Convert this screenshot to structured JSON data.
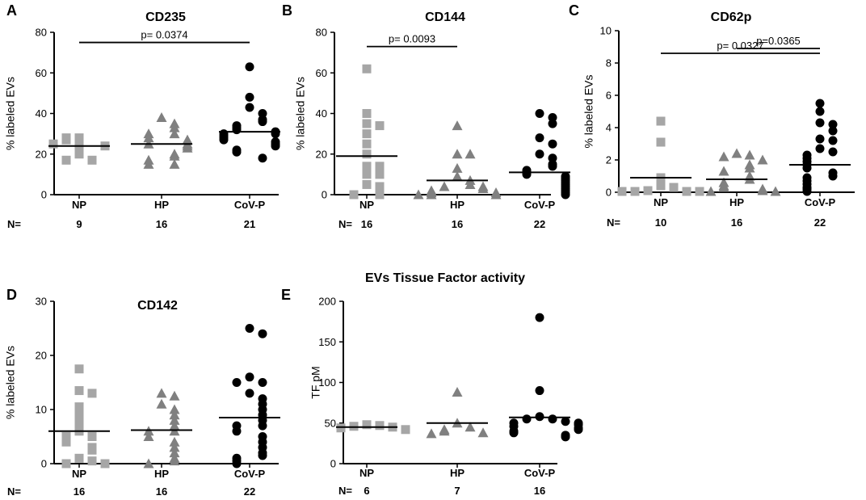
{
  "figure": {
    "colors": {
      "NP": "#a6a6a6",
      "HP": "#808080",
      "CoV-P": "#000000",
      "axis": "#000000"
    },
    "marker_by_group": {
      "NP": "square",
      "HP": "triangle",
      "CoV-P": "circle"
    },
    "n_prefix": "N="
  },
  "chart_data": [
    {
      "panel": "A",
      "type": "scatter",
      "title": "CD235",
      "ylabel": "% labeled EVs",
      "ylim": [
        0,
        80
      ],
      "yticks": [
        0,
        20,
        40,
        60,
        80
      ],
      "categories": [
        "NP",
        "HP",
        "CoV-P"
      ],
      "n": [
        "9",
        "16",
        "21"
      ],
      "groups": [
        {
          "name": "NP",
          "marker": "square",
          "mean": 24,
          "points": [
            24,
            28,
            27,
            28,
            25,
            24,
            20,
            17,
            17
          ]
        },
        {
          "name": "HP",
          "marker": "triangle",
          "mean": 25,
          "points": [
            38,
            35,
            33,
            30,
            30,
            28,
            27,
            25,
            25,
            24,
            23,
            20,
            19,
            17,
            15,
            15
          ]
        },
        {
          "name": "CoV-P",
          "marker": "circle",
          "mean": 31,
          "points": [
            63,
            48,
            43,
            40,
            37,
            36,
            34,
            33,
            32,
            31,
            30,
            30,
            29,
            28,
            27,
            26,
            25,
            24,
            22,
            21,
            18
          ]
        }
      ],
      "comparisons": [
        {
          "from": "NP",
          "to": "CoV-P",
          "label": "p= 0.0374",
          "y": 75
        }
      ]
    },
    {
      "panel": "B",
      "type": "scatter",
      "title": "CD144",
      "ylabel": "% labeled EVs",
      "ylim": [
        0,
        80
      ],
      "yticks": [
        0,
        20,
        40,
        60,
        80
      ],
      "categories": [
        "NP",
        "HP",
        "CoV-P"
      ],
      "n": [
        "16",
        "16",
        "22"
      ],
      "groups": [
        {
          "name": "NP",
          "marker": "square",
          "mean": 19,
          "points": [
            62,
            40,
            35,
            34,
            30,
            25,
            20,
            14,
            14,
            10,
            10,
            5,
            4,
            1,
            0,
            0
          ]
        },
        {
          "name": "HP",
          "marker": "triangle",
          "mean": 7,
          "points": [
            34,
            20,
            20,
            13,
            9,
            7,
            5,
            4,
            4,
            3,
            2,
            1,
            1,
            0,
            0,
            0
          ]
        },
        {
          "name": "CoV-P",
          "marker": "circle",
          "mean": 11,
          "points": [
            40,
            38,
            35,
            28,
            25,
            20,
            18,
            15,
            14,
            12,
            11,
            10,
            9,
            8,
            7,
            6,
            5,
            4,
            3,
            2,
            1,
            0
          ]
        }
      ],
      "comparisons": [
        {
          "from": "NP",
          "to": "HP",
          "label": "p= 0.0093",
          "y": 73
        }
      ]
    },
    {
      "panel": "C",
      "type": "scatter",
      "title": "CD62p",
      "ylabel": "% labeled EVs",
      "ylim": [
        0,
        10
      ],
      "yticks": [
        0,
        2,
        4,
        6,
        8,
        10
      ],
      "categories": [
        "NP",
        "HP",
        "CoV-P"
      ],
      "n": [
        "10",
        "16",
        "22"
      ],
      "groups": [
        {
          "name": "NP",
          "marker": "square",
          "mean": 0.9,
          "points": [
            4.4,
            3.1,
            0.9,
            0.4,
            0.3,
            0.1,
            0.05,
            0.05,
            0.05,
            0.05
          ]
        },
        {
          "name": "HP",
          "marker": "triangle",
          "mean": 0.8,
          "points": [
            2.4,
            2.3,
            2.2,
            2.0,
            1.7,
            1.5,
            1.3,
            1.0,
            0.8,
            0.6,
            0.4,
            0.3,
            0.2,
            0.1,
            0.05,
            0.05
          ]
        },
        {
          "name": "CoV-P",
          "marker": "circle",
          "mean": 1.7,
          "points": [
            5.5,
            5.0,
            4.3,
            4.2,
            3.8,
            3.3,
            3.2,
            2.7,
            2.5,
            2.3,
            2.1,
            1.9,
            1.7,
            1.5,
            1.2,
            1.0,
            0.9,
            0.7,
            0.5,
            0.3,
            0.2,
            0.05
          ]
        }
      ],
      "comparisons": [
        {
          "from": "NP",
          "to": "CoV-P",
          "label": "p= 0.0327",
          "y": 8.6
        },
        {
          "from": "HP",
          "to": "CoV-P",
          "label": "p=0.0365",
          "y": 8.9
        }
      ]
    },
    {
      "panel": "D",
      "type": "scatter",
      "title": "CD142",
      "ylabel": "% labeled EVs",
      "ylim": [
        0,
        30
      ],
      "yticks": [
        0,
        10,
        20,
        30
      ],
      "categories": [
        "NP",
        "HP",
        "CoV-P"
      ],
      "n": [
        "16",
        "16",
        "22"
      ],
      "groups": [
        {
          "name": "NP",
          "marker": "square",
          "mean": 6,
          "points": [
            17.5,
            13.5,
            13,
            10.5,
            9,
            7.5,
            6,
            5,
            5,
            4,
            3,
            2.5,
            1,
            0.5,
            0,
            0
          ]
        },
        {
          "name": "HP",
          "marker": "triangle",
          "mean": 6.2,
          "points": [
            13,
            12.5,
            11,
            10,
            9,
            8,
            7,
            6,
            6,
            5,
            4,
            3,
            2,
            1,
            0.5,
            0
          ]
        },
        {
          "name": "CoV-P",
          "marker": "circle",
          "mean": 8.5,
          "points": [
            25,
            24,
            16,
            15,
            15,
            13,
            12,
            11,
            10,
            9,
            8,
            7,
            7,
            6,
            5,
            4,
            3,
            2,
            1.5,
            1,
            0.5,
            0
          ]
        }
      ],
      "comparisons": []
    },
    {
      "panel": "E",
      "type": "scatter",
      "title": "EVs Tissue Factor activity",
      "ylabel": "TF pM",
      "ylim": [
        0,
        200
      ],
      "yticks": [
        0,
        50,
        100,
        150,
        200
      ],
      "categories": [
        "NP",
        "HP",
        "CoV-P"
      ],
      "n": [
        "6",
        "7",
        "16"
      ],
      "groups": [
        {
          "name": "NP",
          "marker": "square",
          "mean": 45,
          "points": [
            48,
            47,
            46,
            45,
            44,
            42
          ]
        },
        {
          "name": "HP",
          "marker": "triangle",
          "mean": 50,
          "points": [
            88,
            50,
            45,
            42,
            40,
            38,
            37
          ]
        },
        {
          "name": "CoV-P",
          "marker": "circle",
          "mean": 57,
          "points": [
            180,
            90,
            58,
            55,
            55,
            52,
            50,
            50,
            48,
            46,
            44,
            42,
            40,
            38,
            35,
            33
          ]
        }
      ],
      "comparisons": []
    }
  ]
}
